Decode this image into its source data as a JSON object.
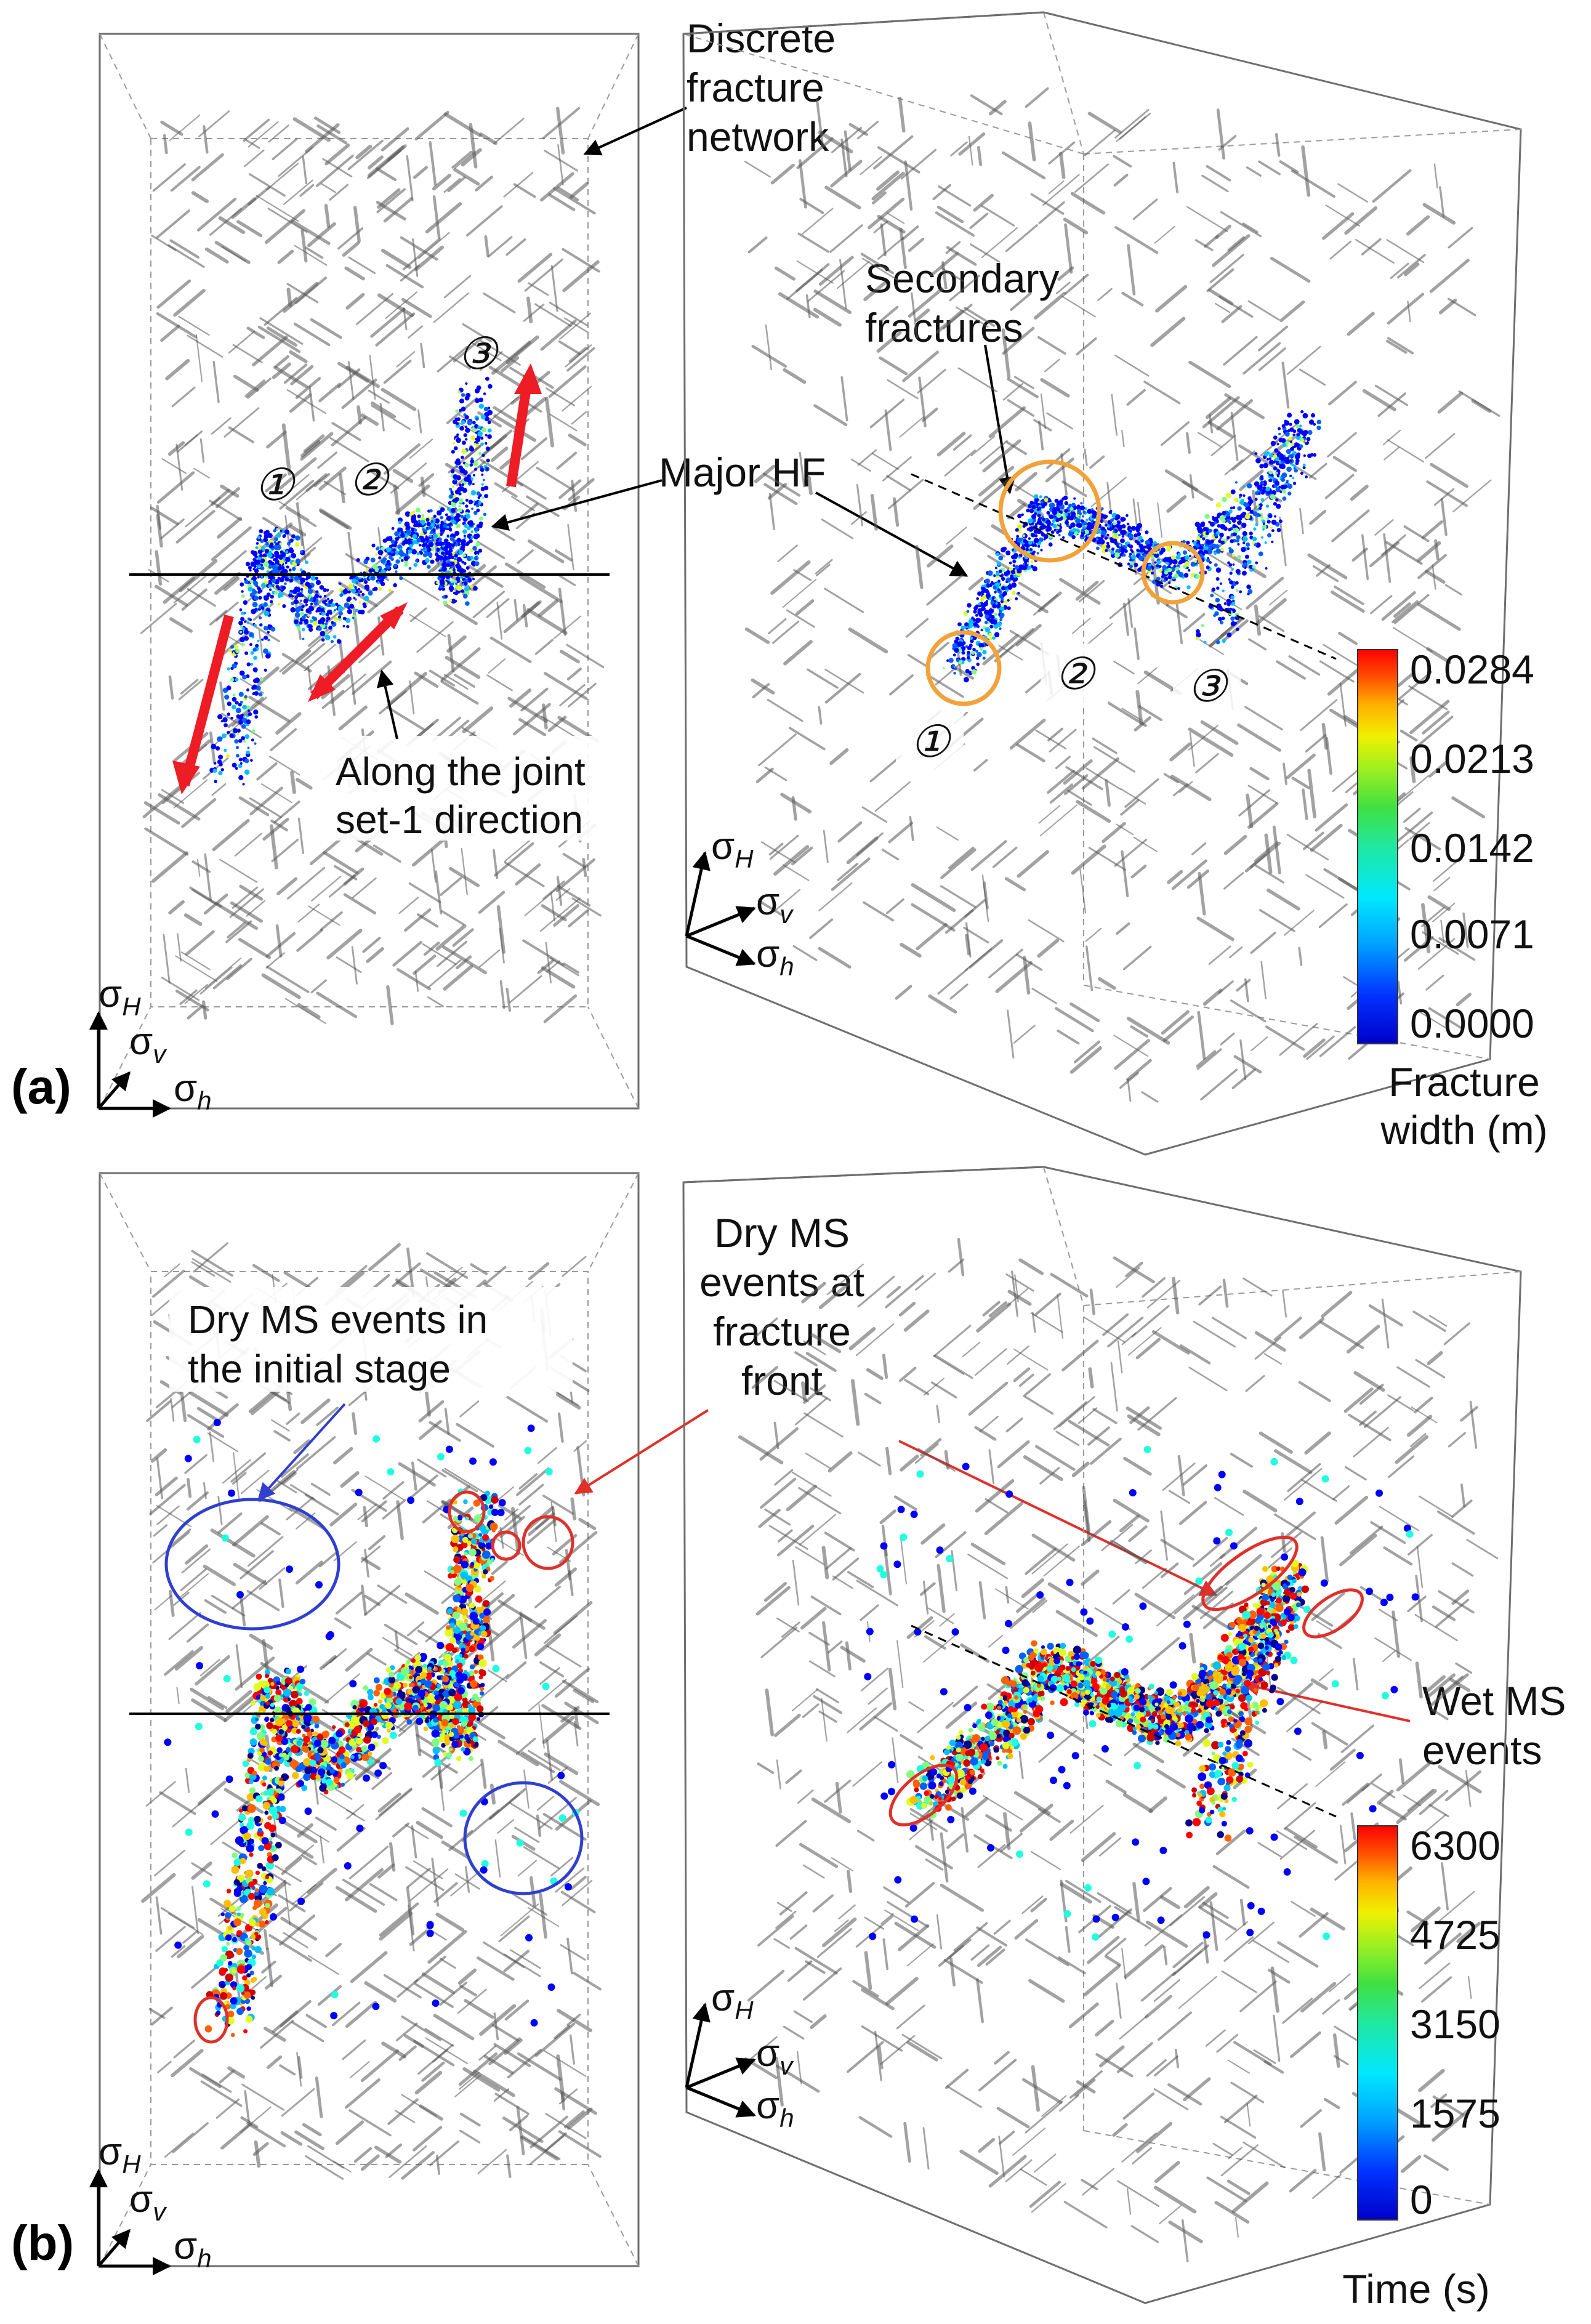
{
  "panels": {
    "a": {
      "tag": "(a)",
      "annotations": {
        "dfn": "Discrete\nfracture\nnetwork",
        "secondary": "Secondary\nfractures",
        "major_hf": "Major HF",
        "joint": "Along the joint\nset-1 direction"
      },
      "labels_left": [
        "①",
        "②",
        "③"
      ],
      "labels_right": [
        "①",
        "②",
        "③"
      ],
      "colorbar": {
        "title": "Fracture\nwidth (m)",
        "ticks": [
          "0.0284",
          "0.0213",
          "0.0142",
          "0.0071",
          "0.0000"
        ]
      }
    },
    "b": {
      "tag": "(b)",
      "annotations": {
        "dry_initial": "Dry MS events in\nthe initial stage",
        "dry_front": "Dry MS\nevents at\nfracture\nfront",
        "wet": "Wet MS\nevents"
      },
      "colorbar": {
        "title": "Time (s)",
        "ticks": [
          "6300",
          "4725",
          "3150",
          "1575",
          "0"
        ]
      }
    }
  },
  "axes": {
    "H": "σ",
    "H_sub": "H",
    "v": "σ",
    "v_sub": "v",
    "h": "σ",
    "h_sub": "h"
  },
  "colors": {
    "jet": [
      "#00008f",
      "#0000ff",
      "#0060ff",
      "#00bfff",
      "#20ffdf",
      "#80ff80",
      "#dfff20",
      "#ffbf00",
      "#ff6000",
      "#ff0000",
      "#cf0000"
    ],
    "arrow_red": "#ee1c24",
    "circle_orange": "#f2a23a",
    "circle_blue": "#2f3fd0",
    "circle_red": "#e0302a"
  }
}
